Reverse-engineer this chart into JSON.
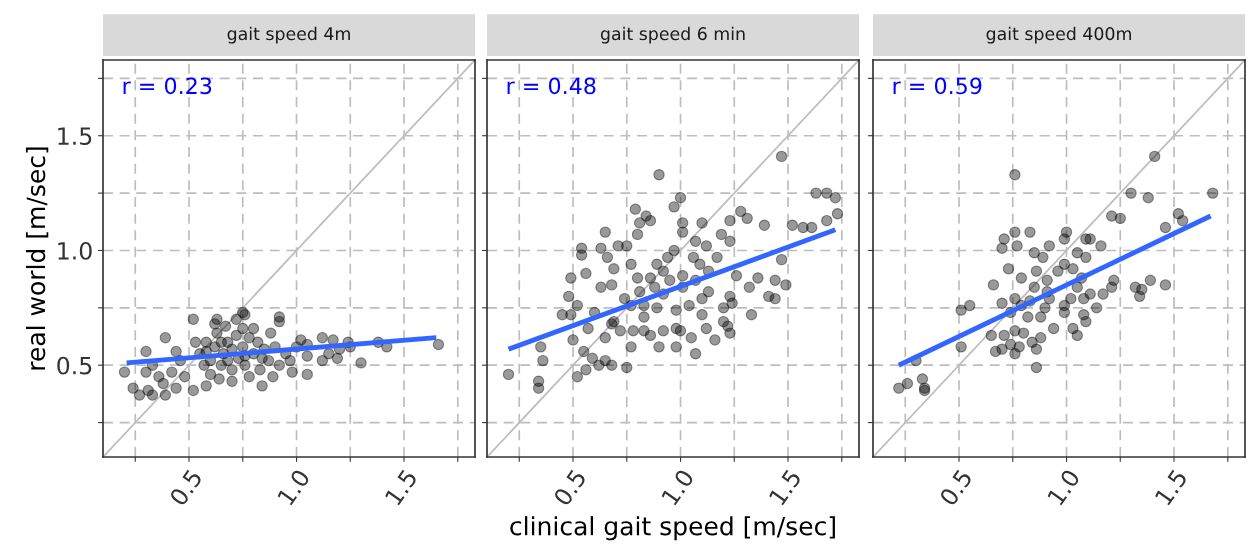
{
  "chart_data": [
    {
      "type": "scatter",
      "title": "gait speed 4m",
      "ylabel": "real world [m/sec]",
      "annotations": [
        "r = 0.23"
      ],
      "xlim": [
        0.1,
        1.83
      ],
      "ylim": [
        0.1,
        1.83
      ],
      "xticks": [
        {
          "value": 0.25,
          "label": null
        },
        {
          "value": 0.5,
          "label": "0.5"
        },
        {
          "value": 0.75,
          "label": null
        },
        {
          "value": 1.0,
          "label": "1.0"
        },
        {
          "value": 1.25,
          "label": null
        },
        {
          "value": 1.5,
          "label": "1.5"
        },
        {
          "value": 1.75,
          "label": null
        }
      ],
      "yticks": [
        {
          "value": 0.25,
          "label": null
        },
        {
          "value": 0.5,
          "label": "0.5"
        },
        {
          "value": 0.75,
          "label": null
        },
        {
          "value": 1.0,
          "label": "1.0"
        },
        {
          "value": 1.25,
          "label": null
        },
        {
          "value": 1.5,
          "label": "1.5"
        },
        {
          "value": 1.75,
          "label": null
        }
      ],
      "grid": true,
      "series": [
        {
          "type": "line",
          "color": "#bebebe",
          "x": [
            0.1,
            1.83
          ],
          "values": [
            0.1,
            1.83
          ]
        },
        {
          "marker": "circle",
          "color": "#000000",
          "x": [
            0.2,
            0.24,
            0.27,
            0.3,
            0.3,
            0.33,
            0.31,
            0.36,
            0.33,
            0.39,
            0.39,
            0.38,
            0.42,
            0.44,
            0.44,
            0.46,
            0.48,
            0.52,
            0.52,
            0.58,
            0.63,
            0.75,
            0.76,
            0.92,
            0.92,
            0.84,
            0.89,
            0.98,
            1.05,
            1.05,
            1.02,
            1.05,
            1.12,
            1.17,
            1.24,
            1.25,
            1.12,
            1.19,
            1.15,
            1.2,
            1.3,
            1.38,
            1.42,
            1.66,
            1.0,
            0.97,
            0.55,
            0.58,
            0.6,
            0.62,
            0.63,
            0.65,
            0.66,
            0.68,
            0.7,
            0.7,
            0.72,
            0.73,
            0.75,
            0.76,
            0.78,
            0.8,
            0.82,
            0.83,
            0.85,
            0.87,
            0.9,
            0.92,
            0.6,
            0.64,
            0.7,
            0.78,
            0.67,
            0.75,
            0.57,
            0.53,
            0.88,
            0.95,
            0.62,
            0.72,
            0.8,
            0.65,
            0.76,
            0.68,
            0.84,
            0.58
          ],
          "values": [
            0.47,
            0.4,
            0.37,
            0.56,
            0.47,
            0.5,
            0.39,
            0.45,
            0.37,
            0.37,
            0.62,
            0.42,
            0.47,
            0.4,
            0.56,
            0.52,
            0.45,
            0.7,
            0.39,
            0.41,
            0.7,
            0.73,
            0.72,
            0.71,
            0.69,
            0.41,
            0.45,
            0.47,
            0.46,
            0.54,
            0.61,
            0.59,
            0.62,
            0.61,
            0.6,
            0.58,
            0.52,
            0.53,
            0.55,
            0.57,
            0.51,
            0.6,
            0.58,
            0.59,
            0.58,
            0.52,
            0.55,
            0.6,
            0.52,
            0.58,
            0.64,
            0.5,
            0.55,
            0.6,
            0.57,
            0.48,
            0.63,
            0.53,
            0.58,
            0.5,
            0.62,
            0.55,
            0.6,
            0.48,
            0.57,
            0.52,
            0.58,
            0.5,
            0.46,
            0.44,
            0.43,
            0.45,
            0.67,
            0.66,
            0.5,
            0.6,
            0.64,
            0.55,
            0.68,
            0.7,
            0.66,
            0.6,
            0.54,
            0.52,
            0.53,
            0.56
          ]
        },
        {
          "type": "line",
          "color": "#3366ff",
          "x": [
            0.21,
            1.65
          ],
          "values": [
            0.51,
            0.62
          ]
        }
      ]
    },
    {
      "type": "scatter",
      "title": "gait speed 6 min",
      "xlabel": "clinical gait speed [m/sec]",
      "annotations": [
        "r = 0.48"
      ],
      "xlim": [
        0.1,
        1.83
      ],
      "ylim": [
        0.1,
        1.83
      ],
      "tick_labels": "x",
      "xticks": [
        {
          "value": 0.25,
          "label": null
        },
        {
          "value": 0.5,
          "label": "0.5"
        },
        {
          "value": 0.75,
          "label": null
        },
        {
          "value": 1.0,
          "label": "1.0"
        },
        {
          "value": 1.25,
          "label": null
        },
        {
          "value": 1.5,
          "label": "1.5"
        },
        {
          "value": 1.75,
          "label": null
        }
      ],
      "yticks": [
        {
          "value": 0.25,
          "label": null
        },
        {
          "value": 0.5,
          "label": null
        },
        {
          "value": 0.75,
          "label": null
        },
        {
          "value": 1.0,
          "label": null
        },
        {
          "value": 1.25,
          "label": null
        },
        {
          "value": 1.5,
          "label": null
        },
        {
          "value": 1.75,
          "label": null
        }
      ],
      "grid": true,
      "series": [
        {
          "type": "line",
          "color": "#bebebe",
          "x": [
            0.1,
            1.83
          ],
          "values": [
            0.1,
            1.83
          ]
        },
        {
          "marker": "circle",
          "color": "#000000",
          "x": [
            0.2,
            0.35,
            0.36,
            0.34,
            0.34,
            0.52,
            0.56,
            0.45,
            0.49,
            0.48,
            0.49,
            0.56,
            0.52,
            0.54,
            0.54,
            0.63,
            0.65,
            0.66,
            0.6,
            0.57,
            0.5,
            0.55,
            0.59,
            0.62,
            0.65,
            0.65,
            0.68,
            0.69,
            0.63,
            0.68,
            0.69,
            0.71,
            0.75,
            0.75,
            0.72,
            0.77,
            0.78,
            0.79,
            0.84,
            0.86,
            0.81,
            0.8,
            0.9,
            0.97,
            1.0,
            1.01,
            1.01,
            1.1,
            1.07,
            1.12,
            1.19,
            1.23,
            1.23,
            1.28,
            1.31,
            1.39,
            1.47,
            1.52,
            1.57,
            1.61,
            1.63,
            1.68,
            1.72,
            1.73,
            1.68,
            1.47,
            1.44,
            1.49,
            1.41,
            1.44,
            1.36,
            1.32,
            1.33,
            1.26,
            1.23,
            1.24,
            1.2,
            1.2,
            1.23,
            1.22,
            1.16,
            1.12,
            1.07,
            0.98,
            1.0,
            1.05,
            0.92,
            0.9,
            0.86,
            0.83,
            0.81,
            0.86,
            0.89,
            0.94,
            0.97,
            1.06,
            1.09,
            1.13,
            1.17,
            1.07,
            1.01,
            0.95,
            0.92,
            0.88,
            0.8,
            0.77,
            0.74,
            0.77,
            0.83,
            0.89,
            0.98,
            1.04,
            1.1,
            1.13,
            1.01,
            0.92,
            0.68,
            0.98,
            1.1,
            0.83
          ],
          "values": [
            0.46,
            0.58,
            0.52,
            0.43,
            0.4,
            0.45,
            0.48,
            0.72,
            0.72,
            0.8,
            0.88,
            0.9,
            0.76,
            1.01,
            0.98,
            1.01,
            1.08,
            0.97,
            0.73,
            0.66,
            0.61,
            0.56,
            0.53,
            0.5,
            0.52,
            0.62,
            0.5,
            0.69,
            0.84,
            0.85,
            0.92,
            1.02,
            1.02,
            0.49,
            0.65,
            0.58,
            0.65,
            1.18,
            1.15,
            1.13,
            1.12,
            1.07,
            1.33,
            1.19,
            1.23,
            1.12,
            1.08,
            1.12,
            1.04,
            1.02,
            1.07,
            1.04,
            1.13,
            1.17,
            1.14,
            1.11,
            1.41,
            1.11,
            1.1,
            1.1,
            1.25,
            1.25,
            1.23,
            1.16,
            1.13,
            0.96,
            0.87,
            0.85,
            0.8,
            0.79,
            0.88,
            0.84,
            0.72,
            0.89,
            0.8,
            0.77,
            0.69,
            0.75,
            0.64,
            0.67,
            0.61,
            0.66,
            0.55,
            0.58,
            0.65,
            0.62,
            0.65,
            0.58,
            0.63,
            0.71,
            0.82,
            0.88,
            0.94,
            0.97,
            1.0,
            0.97,
            0.94,
            0.91,
            0.97,
            0.87,
            0.84,
            0.87,
            0.81,
            0.84,
            0.88,
            0.94,
            0.79,
            0.76,
            0.76,
            0.75,
            0.74,
            0.76,
            0.79,
            0.82,
            0.89,
            0.91,
            0.68,
            0.66,
            0.72,
            0.65
          ]
        },
        {
          "type": "line",
          "color": "#3366ff",
          "x": [
            0.2,
            1.72
          ],
          "values": [
            0.57,
            1.09
          ]
        }
      ]
    },
    {
      "type": "scatter",
      "title": "gait speed 400m",
      "annotations": [
        "r = 0.59"
      ],
      "xlim": [
        0.1,
        1.83
      ],
      "ylim": [
        0.1,
        1.83
      ],
      "tick_labels": "x",
      "xticks": [
        {
          "value": 0.25,
          "label": null
        },
        {
          "value": 0.5,
          "label": "0.5"
        },
        {
          "value": 0.75,
          "label": null
        },
        {
          "value": 1.0,
          "label": "1.0"
        },
        {
          "value": 1.25,
          "label": null
        },
        {
          "value": 1.5,
          "label": "1.5"
        },
        {
          "value": 1.75,
          "label": null
        }
      ],
      "yticks": [
        {
          "value": 0.25,
          "label": null
        },
        {
          "value": 0.5,
          "label": null
        },
        {
          "value": 0.75,
          "label": null
        },
        {
          "value": 1.0,
          "label": null
        },
        {
          "value": 1.25,
          "label": null
        },
        {
          "value": 1.5,
          "label": null
        },
        {
          "value": 1.75,
          "label": null
        }
      ],
      "grid": true,
      "series": [
        {
          "type": "line",
          "color": "#bebebe",
          "x": [
            0.1,
            1.83
          ],
          "values": [
            0.1,
            1.83
          ]
        },
        {
          "marker": "circle",
          "color": "#000000",
          "x": [
            0.22,
            0.26,
            0.3,
            0.33,
            0.34,
            0.34,
            0.51,
            0.51,
            0.55,
            0.65,
            0.66,
            0.7,
            0.71,
            0.76,
            0.76,
            0.77,
            0.83,
            0.7,
            0.71,
            0.67,
            0.7,
            0.74,
            0.76,
            0.78,
            0.76,
            0.73,
            0.79,
            0.74,
            0.76,
            0.8,
            0.84,
            0.86,
            0.86,
            0.88,
            0.82,
            0.83,
            0.85,
            0.86,
            0.85,
            0.89,
            0.92,
            0.91,
            0.91,
            0.9,
            0.94,
            0.99,
            0.96,
            0.99,
            0.99,
            1.0,
            1.05,
            1.09,
            1.09,
            1.11,
            1.16,
            1.03,
            1.07,
            1.05,
            1.02,
            1.08,
            1.11,
            1.14,
            1.17,
            1.08,
            1.09,
            1.03,
            1.05,
            0.99,
            0.92,
            1.21,
            1.22,
            1.32,
            1.35,
            1.34,
            1.39,
            1.46,
            1.21,
            1.25,
            1.3,
            1.38,
            1.41,
            1.46,
            1.52,
            1.54,
            1.68,
            0.79,
            0.88
          ],
          "values": [
            0.4,
            0.42,
            0.52,
            0.44,
            0.4,
            0.39,
            0.58,
            0.74,
            0.76,
            0.63,
            0.85,
            1.01,
            1.05,
            1.08,
            1.33,
            1.02,
            1.08,
            0.77,
            0.63,
            0.56,
            0.57,
            0.59,
            0.55,
            0.58,
            0.79,
            0.92,
            0.88,
            0.73,
            0.65,
            0.64,
            0.6,
            0.57,
            0.49,
            0.62,
            0.71,
            0.78,
            0.84,
            0.91,
            0.99,
            0.97,
            1.02,
            0.87,
            0.82,
            0.75,
            0.66,
            0.73,
            0.91,
            0.94,
            1.05,
            1.08,
            0.99,
            0.97,
            1.05,
            1.05,
            1.02,
            0.92,
            0.88,
            0.84,
            0.79,
            0.79,
            0.81,
            0.75,
            0.81,
            0.72,
            0.69,
            0.66,
            0.63,
            0.76,
            0.79,
            0.84,
            0.87,
            0.84,
            0.83,
            0.8,
            0.87,
            0.85,
            1.15,
            1.14,
            1.25,
            1.23,
            1.41,
            1.1,
            1.16,
            1.13,
            1.25,
            0.76,
            0.71
          ]
        },
        {
          "type": "line",
          "color": "#3366ff",
          "x": [
            0.22,
            1.67
          ],
          "values": [
            0.5,
            1.15
          ]
        }
      ]
    }
  ]
}
